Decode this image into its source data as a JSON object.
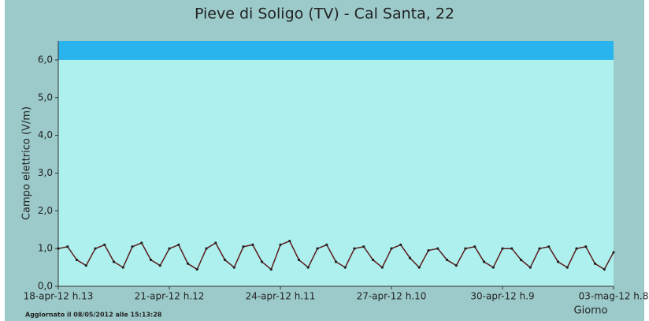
{
  "chart_data": {
    "type": "line",
    "title": "Pieve di Soligo (TV) - Cal Santa, 22",
    "y_label": "Campo elettrico (V/m)",
    "x_label": "Giorno",
    "footnote": "Aggiornato il 08/05/2012 alle 15:13:28",
    "categories": [
      "18-apr-12 h.13",
      null,
      null,
      null,
      null,
      null,
      null,
      null,
      null,
      null,
      null,
      null,
      "21-apr-12 h.12",
      null,
      null,
      null,
      null,
      null,
      null,
      null,
      null,
      null,
      null,
      null,
      "24-apr-12 h.11",
      null,
      null,
      null,
      null,
      null,
      null,
      null,
      null,
      null,
      null,
      null,
      "27-apr-12 h.10",
      null,
      null,
      null,
      null,
      null,
      null,
      null,
      null,
      null,
      null,
      null,
      "30-apr-12 h.9",
      null,
      null,
      null,
      null,
      null,
      null,
      null,
      null,
      null,
      null,
      null,
      "03-mag-12 h.8"
    ],
    "series": [
      {
        "color": "#5a1a1a",
        "values": [
          1.0,
          1.05,
          0.7,
          0.55,
          1.0,
          1.1,
          0.65,
          0.5,
          1.05,
          1.15,
          0.7,
          0.55,
          1.0,
          1.1,
          0.6,
          0.45,
          1.0,
          1.15,
          0.7,
          0.5,
          1.05,
          1.1,
          0.65,
          0.45,
          1.1,
          1.2,
          0.7,
          0.5,
          1.0,
          1.1,
          0.65,
          0.5,
          1.0,
          1.05,
          0.7,
          0.5,
          1.0,
          1.1,
          0.75,
          0.5,
          0.95,
          1.0,
          0.7,
          0.55,
          1.0,
          1.05,
          0.65,
          0.5,
          1.0,
          1.0,
          0.7,
          0.5,
          1.0,
          1.05,
          0.65,
          0.5,
          1.0,
          1.05,
          0.6,
          0.45,
          0.9
        ]
      }
    ],
    "ylim": [
      0,
      6.5
    ],
    "yticks": [
      {
        "value": 0,
        "label": "0,0"
      },
      {
        "value": 1,
        "label": "1,0"
      },
      {
        "value": 2,
        "label": "2,0"
      },
      {
        "value": 3,
        "label": "3,0"
      },
      {
        "value": 4,
        "label": "4,0"
      },
      {
        "value": 5,
        "label": "5,0"
      },
      {
        "value": 6,
        "label": "6,0"
      }
    ],
    "threshold_band": {
      "from": 6,
      "to": 6.5,
      "color": "#2ab4ee"
    },
    "plot_color": "#aef0ee",
    "grid": false
  }
}
